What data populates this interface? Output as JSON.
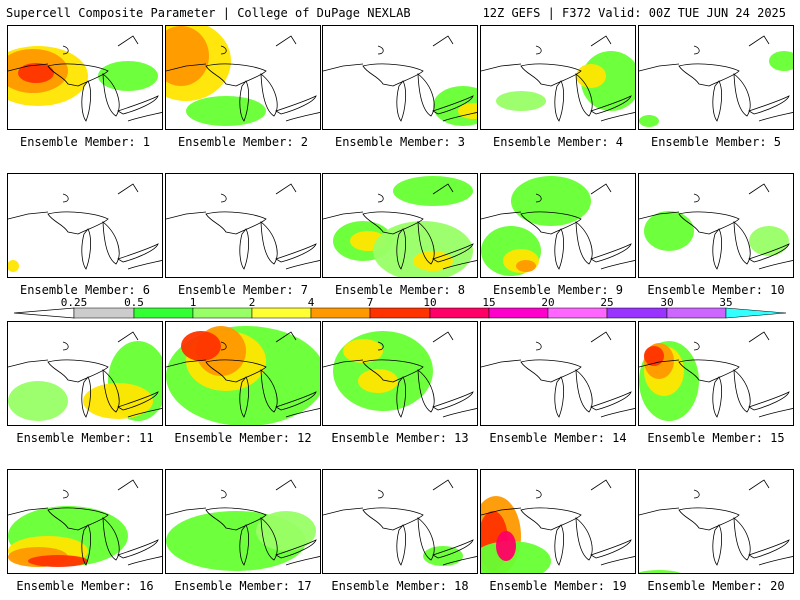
{
  "header": {
    "title": "Supercell Composite Parameter | College of DuPage NEXLAB",
    "valid": "12Z GEFS | F372 Valid: 00Z TUE JUN 24 2025"
  },
  "members": [
    {
      "label": "Ensemble Member: 1",
      "blobs": [
        [
          30,
          75,
          50,
          30,
          "#ffe600"
        ],
        [
          25,
          70,
          35,
          22,
          "#ff9900"
        ],
        [
          28,
          72,
          18,
          10,
          "#ff3300"
        ],
        [
          120,
          75,
          30,
          15,
          "#66ff33"
        ]
      ]
    },
    {
      "label": "Ensemble Member: 2",
      "blobs": [
        [
          20,
          60,
          45,
          40,
          "#ffe600"
        ],
        [
          15,
          55,
          28,
          30,
          "#ff9900"
        ],
        [
          60,
          110,
          40,
          15,
          "#66ff33"
        ]
      ]
    },
    {
      "label": "Ensemble Member: 3",
      "blobs": [
        [
          140,
          105,
          30,
          20,
          "#66ff33"
        ],
        [
          150,
          110,
          15,
          8,
          "#ffe600"
        ]
      ]
    },
    {
      "label": "Ensemble Member: 4",
      "blobs": [
        [
          130,
          80,
          30,
          30,
          "#66ff33"
        ],
        [
          40,
          100,
          25,
          10,
          "#99ff66"
        ],
        [
          110,
          75,
          15,
          12,
          "#ffe600"
        ]
      ]
    },
    {
      "label": "Ensemble Member: 5",
      "blobs": [
        [
          145,
          60,
          15,
          10,
          "#66ff33"
        ],
        [
          10,
          120,
          10,
          6,
          "#66ff33"
        ]
      ]
    },
    {
      "label": "Ensemble Member: 6",
      "blobs": [
        [
          5,
          265,
          6,
          6,
          "#ffe600"
        ]
      ]
    },
    {
      "label": "Ensemble Member: 7",
      "blobs": []
    },
    {
      "label": "Ensemble Member: 8",
      "blobs": [
        [
          40,
          240,
          30,
          20,
          "#66ff33"
        ],
        [
          45,
          240,
          18,
          10,
          "#ffe600"
        ],
        [
          100,
          250,
          50,
          30,
          "#99ff66"
        ],
        [
          110,
          190,
          40,
          15,
          "#66ff33"
        ],
        [
          110,
          260,
          20,
          10,
          "#ffe600"
        ]
      ]
    },
    {
      "label": "Ensemble Member: 9",
      "blobs": [
        [
          30,
          250,
          30,
          25,
          "#66ff33"
        ],
        [
          40,
          260,
          18,
          12,
          "#ffe600"
        ],
        [
          70,
          200,
          40,
          25,
          "#66ff33"
        ],
        [
          45,
          265,
          10,
          6,
          "#ff9900"
        ]
      ]
    },
    {
      "label": "Ensemble Member: 10",
      "blobs": [
        [
          30,
          230,
          25,
          20,
          "#66ff33"
        ],
        [
          130,
          240,
          20,
          15,
          "#99ff66"
        ]
      ]
    },
    {
      "label": "Ensemble Member: 11",
      "blobs": [
        [
          130,
          380,
          30,
          40,
          "#66ff33"
        ],
        [
          110,
          400,
          35,
          18,
          "#ffe600"
        ],
        [
          30,
          400,
          30,
          20,
          "#99ff66"
        ]
      ]
    },
    {
      "label": "Ensemble Member: 12",
      "blobs": [
        [
          80,
          375,
          80,
          50,
          "#66ff33"
        ],
        [
          60,
          360,
          40,
          30,
          "#ffe600"
        ],
        [
          55,
          350,
          25,
          25,
          "#ff9900"
        ],
        [
          35,
          345,
          20,
          15,
          "#ff3300"
        ]
      ]
    },
    {
      "label": "Ensemble Member: 13",
      "blobs": [
        [
          60,
          370,
          50,
          40,
          "#66ff33"
        ],
        [
          55,
          380,
          20,
          12,
          "#ffe600"
        ],
        [
          40,
          350,
          20,
          12,
          "#ffe600"
        ]
      ]
    },
    {
      "label": "Ensemble Member: 14",
      "blobs": []
    },
    {
      "label": "Ensemble Member: 15",
      "blobs": [
        [
          30,
          380,
          30,
          40,
          "#66ff33"
        ],
        [
          25,
          370,
          20,
          25,
          "#ffe600"
        ],
        [
          20,
          360,
          15,
          18,
          "#ff9900"
        ],
        [
          15,
          355,
          10,
          10,
          "#ff3300"
        ]
      ]
    },
    {
      "label": "Ensemble Member: 16",
      "blobs": [
        [
          60,
          535,
          60,
          30,
          "#66ff33"
        ],
        [
          40,
          550,
          40,
          15,
          "#ffe600"
        ],
        [
          30,
          556,
          30,
          10,
          "#ff9900"
        ],
        [
          50,
          560,
          30,
          6,
          "#ff3300"
        ]
      ]
    },
    {
      "label": "Ensemble Member: 17",
      "blobs": [
        [
          70,
          540,
          70,
          30,
          "#66ff33"
        ],
        [
          120,
          530,
          30,
          20,
          "#99ff66"
        ]
      ]
    },
    {
      "label": "Ensemble Member: 18",
      "blobs": [
        [
          120,
          555,
          20,
          10,
          "#66ff33"
        ]
      ]
    },
    {
      "label": "Ensemble Member: 19",
      "blobs": [
        [
          15,
          535,
          25,
          40,
          "#ff9900"
        ],
        [
          12,
          540,
          15,
          30,
          "#ff3300"
        ],
        [
          30,
          560,
          40,
          20,
          "#66ff33"
        ],
        [
          25,
          545,
          10,
          15,
          "#ff0066"
        ]
      ]
    },
    {
      "label": "Ensemble Member: 20",
      "blobs": [
        [
          20,
          575,
          25,
          6,
          "#66ff33"
        ]
      ]
    }
  ],
  "colorbar": {
    "ticks": [
      "0.25",
      "0.5",
      "1",
      "2",
      "4",
      "7",
      "10",
      "15",
      "20",
      "25",
      "30",
      "35"
    ],
    "colors": [
      "#cccccc",
      "#33ff33",
      "#99ff66",
      "#ffff33",
      "#ff9900",
      "#ff3300",
      "#ff0066",
      "#ff00cc",
      "#ff66ff",
      "#9933ff",
      "#cc66ff",
      "#33ffff"
    ]
  }
}
